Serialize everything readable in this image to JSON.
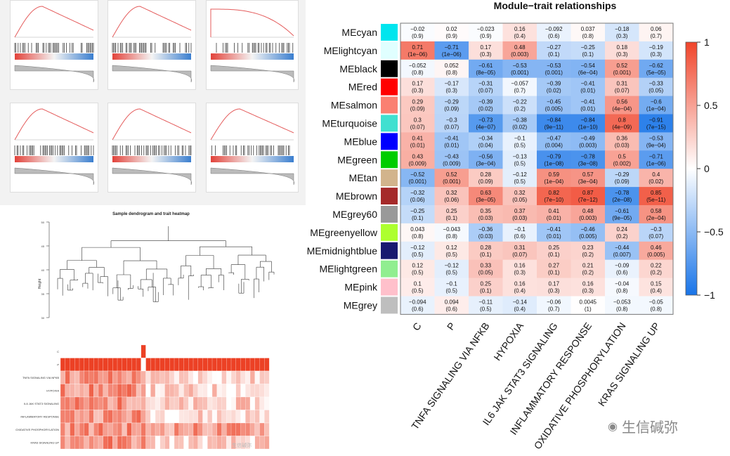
{
  "chart_data": [
    {
      "type": "heatmap",
      "title": "Module−trait relationships",
      "rows": [
        "MEcyan",
        "MElightcyan",
        "MEblack",
        "MEred",
        "MEsalmon",
        "MEturquoise",
        "MEblue",
        "MEgreen",
        "MEtan",
        "MEbrown",
        "MEgrey60",
        "MEgreenyellow",
        "MEmidnightblue",
        "MElightgreen",
        "MEpink",
        "MEgrey"
      ],
      "row_colors": [
        "#00e5ee",
        "#e0ffff",
        "#000000",
        "#ff0000",
        "#fa8072",
        "#40e0d0",
        "#0000ff",
        "#00cd00",
        "#d2b48c",
        "#a52a2a",
        "#999999",
        "#adff2f",
        "#191970",
        "#90ee90",
        "#ffc0cb",
        "#bebebe"
      ],
      "columns": [
        "C",
        "P",
        "TNFA SIGNALING VIA NFKB",
        "HYPOXIA",
        "IL6 JAK STAT3 SIGNALING",
        "INFLAMMATORY RESPONSE",
        "OXIDATIVE PHOSPHORYLATION",
        "KRAS SIGNALING UP"
      ],
      "values": [
        [
          "−0.02",
          "0.02",
          "−0.023",
          "0.16",
          "−0.092",
          "0.037",
          "−0.18",
          "0.06"
        ],
        [
          "0.71",
          "−0.71",
          "0.17",
          "0.48",
          "−0.27",
          "−0.25",
          "0.18",
          "−0.19"
        ],
        [
          "−0.052",
          "0.052",
          "−0.61",
          "−0.53",
          "−0.53",
          "−0.54",
          "0.52",
          "−0.62"
        ],
        [
          "0.17",
          "−0.17",
          "−0.31",
          "−0.057",
          "−0.39",
          "−0.41",
          "0.31",
          "−0.33"
        ],
        [
          "0.29",
          "−0.29",
          "−0.39",
          "−0.22",
          "−0.45",
          "−0.41",
          "0.56",
          "−0.6"
        ],
        [
          "0.3",
          "−0.3",
          "−0.73",
          "−0.38",
          "−0.84",
          "−0.84",
          "0.8",
          "−0.91"
        ],
        [
          "0.41",
          "−0.41",
          "−0.34",
          "−0.1",
          "−0.47",
          "−0.49",
          "0.36",
          "−0.53"
        ],
        [
          "0.43",
          "−0.43",
          "−0.56",
          "−0.13",
          "−0.79",
          "−0.78",
          "0.5",
          "−0.71"
        ],
        [
          "−0.52",
          "0.52",
          "0.28",
          "−0.12",
          "0.59",
          "0.57",
          "−0.29",
          "0.4"
        ],
        [
          "−0.32",
          "0.32",
          "0.63",
          "0.32",
          "0.82",
          "0.87",
          "−0.78",
          "0.85"
        ],
        [
          "−0.25",
          "0.25",
          "0.35",
          "0.37",
          "0.41",
          "0.48",
          "−0.61",
          "0.58"
        ],
        [
          "0.043",
          "−0.043",
          "−0.36",
          "−0.1",
          "−0.41",
          "−0.46",
          "0.24",
          "−0.3"
        ],
        [
          "−0.12",
          "0.12",
          "0.28",
          "0.31",
          "0.25",
          "0.23",
          "−0.44",
          "0.46"
        ],
        [
          "0.12",
          "−0.12",
          "0.33",
          "0.16",
          "0.27",
          "0.21",
          "−0.09",
          "0.22"
        ],
        [
          "0.1",
          "−0.1",
          "0.25",
          "0.16",
          "0.17",
          "0.16",
          "−0.04",
          "0.15"
        ],
        [
          "−0.094",
          "0.094",
          "−0.11",
          "−0.14",
          "−0.06",
          "0.0045",
          "−0.053",
          "−0.05"
        ]
      ],
      "pvalues": [
        [
          "(0.9)",
          "(0.9)",
          "(0.9)",
          "(0.4)",
          "(0.6)",
          "(0.8)",
          "(0.3)",
          "(0.7)"
        ],
        [
          "(1e−06)",
          "(1e−06)",
          "(0.3)",
          "(0.003)",
          "(0.1)",
          "(0.1)",
          "(0.3)",
          "(0.3)"
        ],
        [
          "(0.8)",
          "(0.8)",
          "(8e−05)",
          "(0.001)",
          "(0.001)",
          "(6e−04)",
          "(0.001)",
          "(5e−05)"
        ],
        [
          "(0.3)",
          "(0.3)",
          "(0.07)",
          "(0.7)",
          "(0.02)",
          "(0.01)",
          "(0.07)",
          "(0.05)"
        ],
        [
          "(0.09)",
          "(0.09)",
          "(0.02)",
          "(0.2)",
          "(0.005)",
          "(0.01)",
          "(4e−04)",
          "(1e−04)"
        ],
        [
          "(0.07)",
          "(0.07)",
          "(4e−07)",
          "(0.02)",
          "(9e−11)",
          "(1e−10)",
          "(4e−09)",
          "(7e−15)"
        ],
        [
          "(0.01)",
          "(0.01)",
          "(0.04)",
          "(0.5)",
          "(0.004)",
          "(0.003)",
          "(0.03)",
          "(9e−04)"
        ],
        [
          "(0.009)",
          "(0.009)",
          "(3e−04)",
          "(0.5)",
          "(1e−08)",
          "(3e−08)",
          "(0.002)",
          "(1e−06)"
        ],
        [
          "(0.001)",
          "(0.001)",
          "(0.09)",
          "(0.5)",
          "(1e−04)",
          "(3e−04)",
          "(0.09)",
          "(0.02)"
        ],
        [
          "(0.06)",
          "(0.06)",
          "(3e−05)",
          "(0.05)",
          "(7e−10)",
          "(7e−12)",
          "(2e−08)",
          "(5e−11)"
        ],
        [
          "(0.1)",
          "(0.1)",
          "(0.03)",
          "(0.03)",
          "(0.01)",
          "(0.003)",
          "(9e−05)",
          "(2e−04)"
        ],
        [
          "(0.8)",
          "(0.8)",
          "(0.03)",
          "(0.6)",
          "(0.01)",
          "(0.005)",
          "(0.2)",
          "(0.07)"
        ],
        [
          "(0.5)",
          "(0.5)",
          "(0.1)",
          "(0.07)",
          "(0.1)",
          "(0.2)",
          "(0.007)",
          "(0.005)"
        ],
        [
          "(0.5)",
          "(0.5)",
          "(0.05)",
          "(0.3)",
          "(0.1)",
          "(0.2)",
          "(0.6)",
          "(0.2)"
        ],
        [
          "(0.5)",
          "(0.5)",
          "(0.1)",
          "(0.4)",
          "(0.3)",
          "(0.3)",
          "(0.8)",
          "(0.4)"
        ],
        [
          "(0.6)",
          "(0.6)",
          "(0.5)",
          "(0.4)",
          "(0.7)",
          "(1)",
          "(0.8)",
          "(0.8)"
        ]
      ],
      "colorbar_ticks": [
        "1",
        "0.5",
        "0",
        "−0.5",
        "−1"
      ],
      "vmin": -1,
      "vmax": 1,
      "colormap": [
        "#1874e8",
        "#ffffff",
        "#f0442a"
      ]
    },
    {
      "type": "dendrogram_heatmap",
      "title": "Sample dendrogram and trait heatmap",
      "ylabel": "Height",
      "yticks": [
        "50",
        "45",
        "40",
        "35",
        "30"
      ],
      "traits": [
        "C",
        "P",
        "TNFA SIGNALING VIA NFKB",
        "HYPOXIA",
        "IL6 JAK STAT3 SIGNALING",
        "INFLAMMATORY RESPONSE",
        "OXIDATIVE PHOSPHORYLATION",
        "KRAS SIGNALING UP"
      ]
    }
  ],
  "watermark": {
    "main": "生信碱弥",
    "small": "生信碱弥"
  }
}
